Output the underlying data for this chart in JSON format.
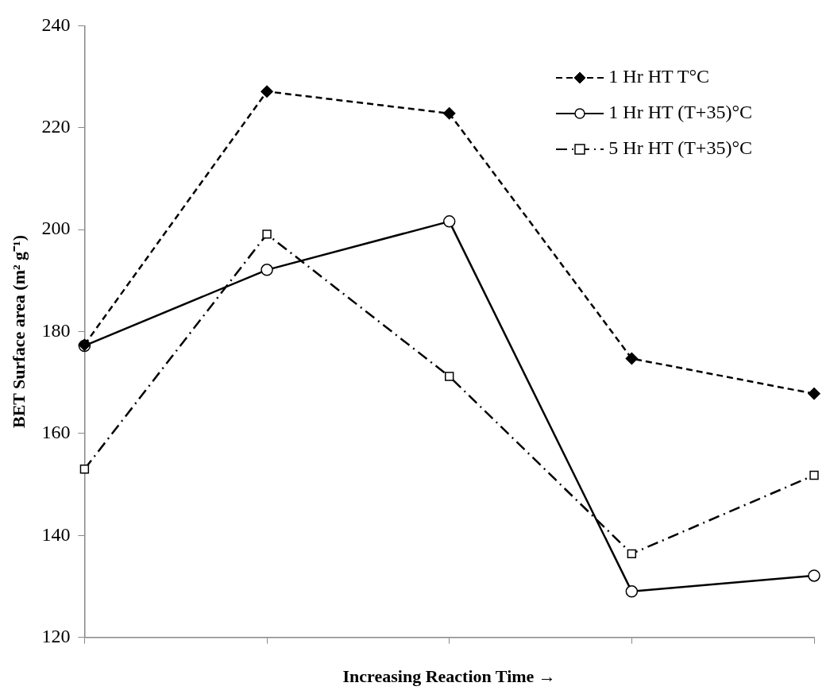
{
  "chart_data": {
    "type": "line",
    "xlabel": "Increasing Reaction Time →",
    "ylabel": "BET Surface area (m² g⁻¹)",
    "categories": [
      null,
      null,
      null,
      null,
      null
    ],
    "ylim": [
      120,
      240
    ],
    "yticks": [
      120,
      140,
      160,
      180,
      200,
      220,
      240
    ],
    "grid": false,
    "legend": "top right",
    "tick_labels": "y",
    "series": [
      {
        "name": "1 Hr HT T°C",
        "color": "#000000",
        "marker": "diamond",
        "line_style": "dashed",
        "values": [
          177.4,
          227.1,
          222.8,
          174.7,
          167.8
        ]
      },
      {
        "name": "1 Hr HT (T+35)°C",
        "color": "#000000",
        "marker": "circle",
        "line_style": "solid",
        "values": [
          177.2,
          192.1,
          201.6,
          129,
          132.1
        ]
      },
      {
        "name": "5 Hr HT (T+35)°C",
        "color": "#000000",
        "marker": "square",
        "line_style": "dashdot",
        "values": [
          153,
          199.1,
          171.2,
          136.4,
          151.8
        ]
      }
    ]
  }
}
